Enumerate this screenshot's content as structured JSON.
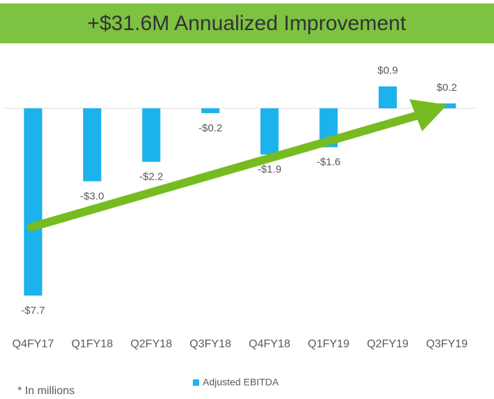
{
  "chart_data": {
    "type": "bar",
    "title": "+$31.6M Annualized Improvement",
    "categories": [
      "Q4FY17",
      "Q1FY18",
      "Q2FY18",
      "Q3FY18",
      "Q4FY18",
      "Q1FY19",
      "Q2FY19",
      "Q3FY19"
    ],
    "series": [
      {
        "name": "Adjusted EBITDA",
        "color": "#1cb2ec",
        "values": [
          -7.7,
          -3.0,
          -2.2,
          -0.2,
          -1.9,
          -1.6,
          0.9,
          0.2
        ],
        "value_labels": [
          "-$7.7",
          "-$3.0",
          "-$2.2",
          "-$0.2",
          "-$1.9",
          "-$1.6",
          "$0.9",
          "$0.2"
        ]
      }
    ],
    "footnote": "* In millions"
  }
}
